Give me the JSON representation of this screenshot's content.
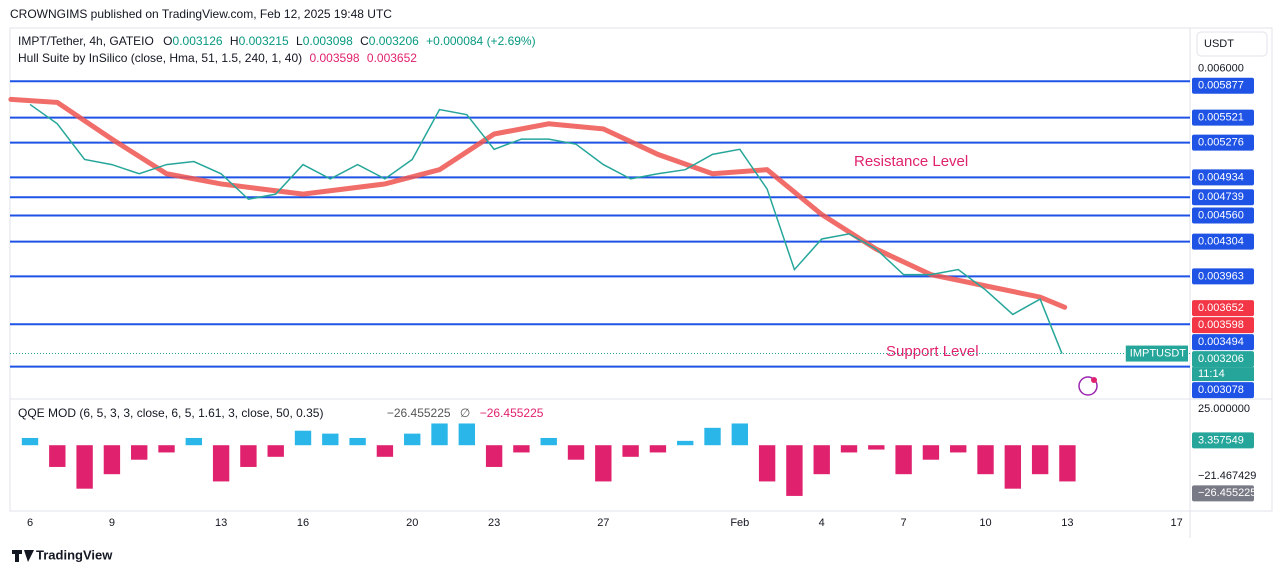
{
  "header": {
    "publisher": "CROWNGIMS published on TradingView.com, Feb 12, 2025 19:48 UTC"
  },
  "chart_data": [
    {
      "type": "line",
      "symbol": "IMPT/Tether, 4h, GATEIO",
      "ohlc": [
        {
          "label": "O",
          "value": 0.003126
        },
        {
          "label": "H",
          "value": 0.003215
        },
        {
          "label": "L",
          "value": 0.003098
        },
        {
          "label": "C",
          "value": 0.003206
        }
      ],
      "change": "+0.000084 (+2.69%)",
      "indicator": "Hull Suite by InSilico (close, Hma, 51, 1.5, 240, 1, 40)",
      "indicator_values": [
        0.003598,
        0.003652
      ],
      "axis_unit": "USDT",
      "annotations": [
        "Resistance Level",
        "Support Level"
      ],
      "x": [
        0,
        1,
        2,
        3,
        4,
        5,
        6,
        7,
        8,
        9,
        10,
        11,
        12,
        13,
        14,
        15,
        16,
        17,
        18,
        19,
        20,
        21,
        22,
        23,
        24,
        25,
        26,
        27,
        28,
        29,
        30,
        31,
        32,
        33,
        34,
        35,
        36,
        37,
        37.8
      ],
      "series": [
        {
          "name": "IMPTUSDT",
          "color": "#26a69a",
          "values": [
            0.00565,
            0.00546,
            0.00511,
            0.00506,
            0.00497,
            0.00506,
            0.00509,
            0.00497,
            0.00472,
            0.00477,
            0.00506,
            0.00492,
            0.00506,
            0.00492,
            0.00511,
            0.0056,
            0.00555,
            0.00521,
            0.00531,
            0.00531,
            0.00526,
            0.00506,
            0.00492,
            0.00497,
            0.00501,
            0.00516,
            0.00521,
            0.00482,
            0.00403,
            0.00433,
            0.00438,
            0.00423,
            0.00398,
            0.00398,
            0.00403,
            0.00383,
            0.00359,
            0.00374,
            0.003206
          ]
        }
      ],
      "hull": {
        "color": "#ef5350",
        "x": [
          -0.7,
          1,
          3,
          5,
          7,
          10,
          13,
          15,
          17,
          19,
          21,
          23,
          25,
          27,
          29,
          31,
          33,
          35,
          37,
          37.9
        ],
        "values": [
          0.0057,
          0.00567,
          0.00531,
          0.00497,
          0.00487,
          0.00477,
          0.00487,
          0.00501,
          0.00536,
          0.00546,
          0.00541,
          0.00516,
          0.00497,
          0.00501,
          0.00457,
          0.00423,
          0.00398,
          0.00387,
          0.00376,
          0.00366
        ]
      },
      "last": {
        "value": 0.003206,
        "countdown": "11:14",
        "color": "#26a69a"
      },
      "levels": [
        0.005877,
        0.005521,
        0.005276,
        0.004934,
        0.004739,
        {
          "value": 0.00456,
          "label": "0.004560"
        },
        0.004304,
        0.003963,
        0.003494,
        0.003078
      ],
      "level_color": "#1e53e5",
      "xlim": [
        -0.733,
        42.49
      ],
      "ylim": [
        0.00277,
        0.0064
      ],
      "yticks": [
        {
          "value": 0.006,
          "label": "0.006000"
        }
      ],
      "xticks": [
        {
          "value": 0,
          "label": "6"
        },
        {
          "value": 3,
          "label": "9"
        },
        {
          "value": 7,
          "label": "13"
        },
        {
          "value": 10,
          "label": "16"
        },
        {
          "value": 14,
          "label": "20"
        },
        {
          "value": 17,
          "label": "23"
        },
        {
          "value": 21,
          "label": "27"
        },
        {
          "value": 26,
          "label": "Feb"
        },
        {
          "value": 29,
          "label": "4"
        },
        {
          "value": 32,
          "label": "7"
        },
        {
          "value": 35,
          "label": "10"
        },
        {
          "value": 38,
          "label": "13"
        },
        {
          "value": 42,
          "label": "17"
        }
      ]
    },
    {
      "type": "bar",
      "title": "QQE MOD (6, 5, 3, 3, close, 6, 5, 1.61, 3, close, 50, 0.35)",
      "readout": [
        {
          "value": -26.455225,
          "label": "−26.455225"
        },
        "∅",
        {
          "value": -26.455225,
          "label": "−26.455225"
        }
      ],
      "x": [
        0,
        1,
        2,
        3,
        4,
        5,
        6,
        7,
        8,
        9,
        10,
        11,
        12,
        13,
        14,
        15,
        16,
        17,
        18,
        19,
        20,
        21,
        22,
        23,
        24,
        25,
        26,
        27,
        28,
        29,
        30,
        31,
        32,
        33,
        34,
        35,
        36,
        37,
        38
      ],
      "values": [
        5,
        -15,
        -30,
        -20,
        -10,
        -5,
        5,
        -25,
        -15,
        -8,
        10,
        8,
        5,
        -8,
        8,
        15,
        15,
        -15,
        -5,
        5,
        -10,
        -25,
        -8,
        -5,
        3,
        12,
        15,
        -25,
        -35,
        -20,
        -5,
        -3,
        -20,
        -10,
        -5,
        -20,
        -30,
        -20,
        -25
      ],
      "pos_color": "#2ab6e8",
      "neg_color": "#e0226e",
      "xlim": [
        -0.733,
        42.49
      ],
      "ylim": [
        -45.4,
        31.2
      ],
      "yticks": [
        {
          "value": 25,
          "label": "25.000000"
        },
        {
          "value": -21.467429,
          "label": "−21.467429"
        }
      ],
      "badges": [
        {
          "value": 3.357549,
          "color": "#26a69a"
        },
        {
          "value": -26.455225,
          "label": "−26.455225",
          "color": "#787b86"
        }
      ]
    }
  ],
  "footer": {
    "brand": "TradingView"
  }
}
